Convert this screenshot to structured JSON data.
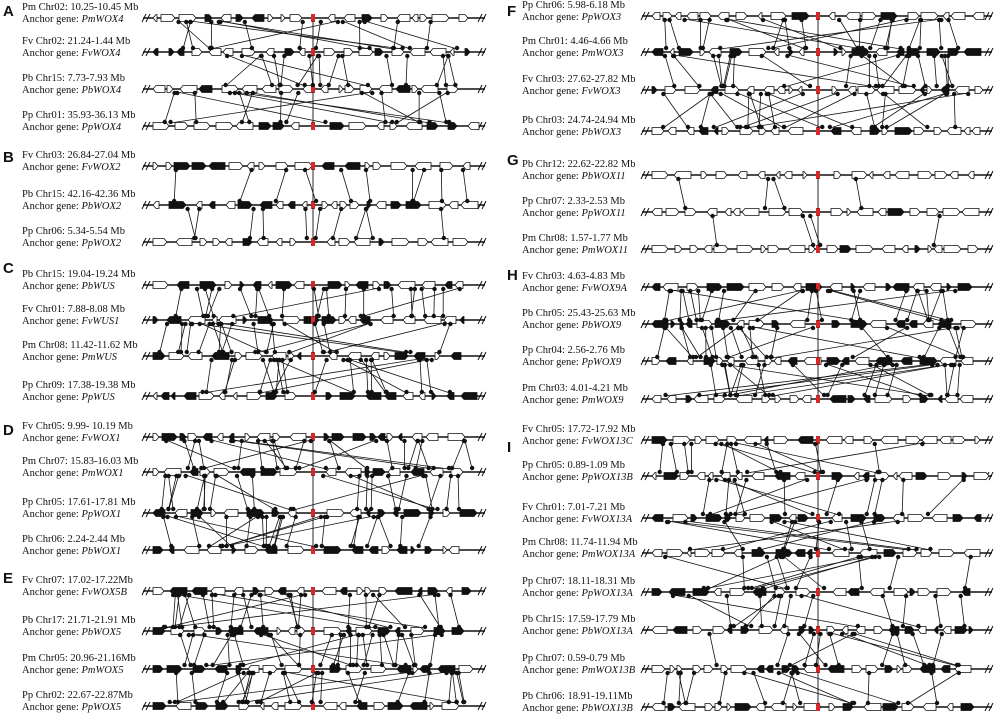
{
  "panels": [
    {
      "letter": "A",
      "column": "left",
      "tracks": [
        {
          "location": "Pm Chr02: 10.25-10.45 Mb",
          "anchor_prefix": "Anchor gene:",
          "anchor_gene": "PmWOX4"
        },
        {
          "location": "Fv Chr02: 21.24-1.44 Mb",
          "anchor_prefix": "Anchor gene:",
          "anchor_gene": "FvWOX4"
        },
        {
          "location": "Pb Chr15: 7.73-7.93 Mb",
          "anchor_prefix": "Anchor gene:",
          "anchor_gene": "PbWOX4"
        },
        {
          "location": "Pp Chr01: 35.93-36.13 Mb",
          "anchor_prefix": "Anchor gene:",
          "anchor_gene": "PpWOX4"
        }
      ]
    },
    {
      "letter": "B",
      "column": "left",
      "tracks": [
        {
          "location": "Fv Chr03: 26.84-27.04 Mb",
          "anchor_prefix": "Anchor gene:",
          "anchor_gene": "FvWOX2"
        },
        {
          "location": "Pb Chr15: 42.16-42.36 Mb",
          "anchor_prefix": "Anchor gene:",
          "anchor_gene": "PbWOX2"
        },
        {
          "location": "Pp Chr06: 5.34-5.54 Mb",
          "anchor_prefix": "Anchor gene:",
          "anchor_gene": "PpWOX2"
        }
      ]
    },
    {
      "letter": "C",
      "column": "left",
      "tracks": [
        {
          "location": "Pb Chr15: 19.04-19.24 Mb",
          "anchor_prefix": "Anchor gene:",
          "anchor_gene": "PbWUS"
        },
        {
          "location": "Fv Chr01: 7.88-8.08 Mb",
          "anchor_prefix": "Anchor gene:",
          "anchor_gene": "FvWUS1"
        },
        {
          "location": "Pm Chr08: 11.42-11.62 Mb",
          "anchor_prefix": "Anchor gene:",
          "anchor_gene": "PmWUS"
        },
        {
          "location": "Pp Chr09: 17.38-19.38 Mb",
          "anchor_prefix": "Anchor gene:",
          "anchor_gene": "PpWUS"
        }
      ]
    },
    {
      "letter": "D",
      "column": "left",
      "tracks": [
        {
          "location": "Fv Chr05: 9.99- 10.19 Mb",
          "anchor_prefix": "Anchor gene:",
          "anchor_gene": "FvWOX1"
        },
        {
          "location": "Pm Chr07: 15.83-16.03 Mb",
          "anchor_prefix": "Anchor gene:",
          "anchor_gene": "PmWOX1"
        },
        {
          "location": "Pp Chr05: 17.61-17.81 Mb",
          "anchor_prefix": "Anchor gene:",
          "anchor_gene": "PpWOX1"
        },
        {
          "location": "Pb Chr06: 2.24-2.44 Mb",
          "anchor_prefix": "Anchor gene:",
          "anchor_gene": "PbWOX1"
        }
      ]
    },
    {
      "letter": "E",
      "column": "left",
      "tracks": [
        {
          "location": "Fv Chr07: 17.02-17.22Mb",
          "anchor_prefix": "Anchor gene:",
          "anchor_gene": "FvWOX5B"
        },
        {
          "location": "Pb Chr17: 21.71-21.91 Mb",
          "anchor_prefix": "Anchor gene:",
          "anchor_gene": "PbWOX5"
        },
        {
          "location": "Pm Chr05: 20.96-21.16Mb",
          "anchor_prefix": "Anchor gene:",
          "anchor_gene": "PmWOX5"
        },
        {
          "location": "Pp Chr02: 22.67-22.87Mb",
          "anchor_prefix": "Anchor gene:",
          "anchor_gene": "PpWOX5"
        }
      ]
    },
    {
      "letter": "F",
      "column": "right",
      "tracks": [
        {
          "location": "Pp Chr06: 5.98-6.18 Mb",
          "anchor_prefix": "Anchor gene:",
          "anchor_gene": "PpWOX3"
        },
        {
          "location": "Pm Chr01: 4.46-4.66 Mb",
          "anchor_prefix": "Anchor gene:",
          "anchor_gene": "PmWOX3"
        },
        {
          "location": "Fv Chr03: 27.62-27.82 Mb",
          "anchor_prefix": "Anchor gene:",
          "anchor_gene": "FvWOX3"
        },
        {
          "location": "Pb Chr03: 24.74-24.94 Mb",
          "anchor_prefix": "Anchor gene:",
          "anchor_gene": "PbWOX3"
        }
      ]
    },
    {
      "letter": "G",
      "column": "right",
      "tracks": [
        {
          "location": "Pb Chr12: 22.62-22.82 Mb",
          "anchor_prefix": "Anchor gene:",
          "anchor_gene": "PbWOX11"
        },
        {
          "location": "Pp Chr07: 2.33-2.53 Mb",
          "anchor_prefix": "Anchor gene:",
          "anchor_gene": "PpWOX11"
        },
        {
          "location": "Pm Chr08: 1.57-1.77 Mb",
          "anchor_prefix": "Anchor gene:",
          "anchor_gene": "PmWOX11"
        }
      ]
    },
    {
      "letter": "H",
      "column": "right",
      "tracks": [
        {
          "location": "Fv Chr03: 4.63-4.83 Mb",
          "anchor_prefix": "Anchor gene:",
          "anchor_gene": "FvWOX9A"
        },
        {
          "location": "Pb Chr05: 25.43-25.63 Mb",
          "anchor_prefix": "Anchor gene:",
          "anchor_gene": "PbWOX9"
        },
        {
          "location": "Pp Chr04: 2.56-2.76 Mb",
          "anchor_prefix": "Anchor gene:",
          "anchor_gene": "PpWOX9"
        },
        {
          "location": "Pm Chr03: 4.01-4.21 Mb",
          "anchor_prefix": "Anchor gene:",
          "anchor_gene": "PmWOX9"
        }
      ]
    },
    {
      "letter": "I",
      "column": "right",
      "tracks": [
        {
          "location": "Fv Chr05: 17.72-17.92 Mb",
          "anchor_prefix": "Anchor gene:",
          "anchor_gene": "FvWOX13C"
        },
        {
          "location": "Pp Chr05: 0.89-1.09 Mb",
          "anchor_prefix": "Anchor gene:",
          "anchor_gene": "PpWOX13B"
        },
        {
          "location": "Fv Chr01: 7.01-7.21 Mb",
          "anchor_prefix": "Anchor gene:",
          "anchor_gene": "FvWOX13A"
        },
        {
          "location": "Pm Chr08: 11.74-11.94 Mb",
          "anchor_prefix": "Anchor gene:",
          "anchor_gene": "PmWOX13A"
        },
        {
          "location": "Pp Chr07: 18.11-18.31 Mb",
          "anchor_prefix": "Anchor gene:",
          "anchor_gene": "PpWOX13A"
        },
        {
          "location": "Pb Chr15: 17.59-17.79 Mb",
          "anchor_prefix": "Anchor gene:",
          "anchor_gene": "PbWOX13A"
        },
        {
          "location": "Pp Chr07: 0.59-0.79 Mb",
          "anchor_prefix": "Anchor gene:",
          "anchor_gene": "PmWOX13B"
        },
        {
          "location": "Pb Chr06: 18.91-19.11Mb",
          "anchor_prefix": "Anchor gene:",
          "anchor_gene": "PbWOX13B"
        }
      ]
    }
  ],
  "colors": {
    "track_line": "#111111",
    "gene_fill_dark": "#111111",
    "gene_fill_light": "#ffffff",
    "anchor_gene": "#d62a2a",
    "collinear_link": "#111111",
    "background": "#ffffff"
  }
}
